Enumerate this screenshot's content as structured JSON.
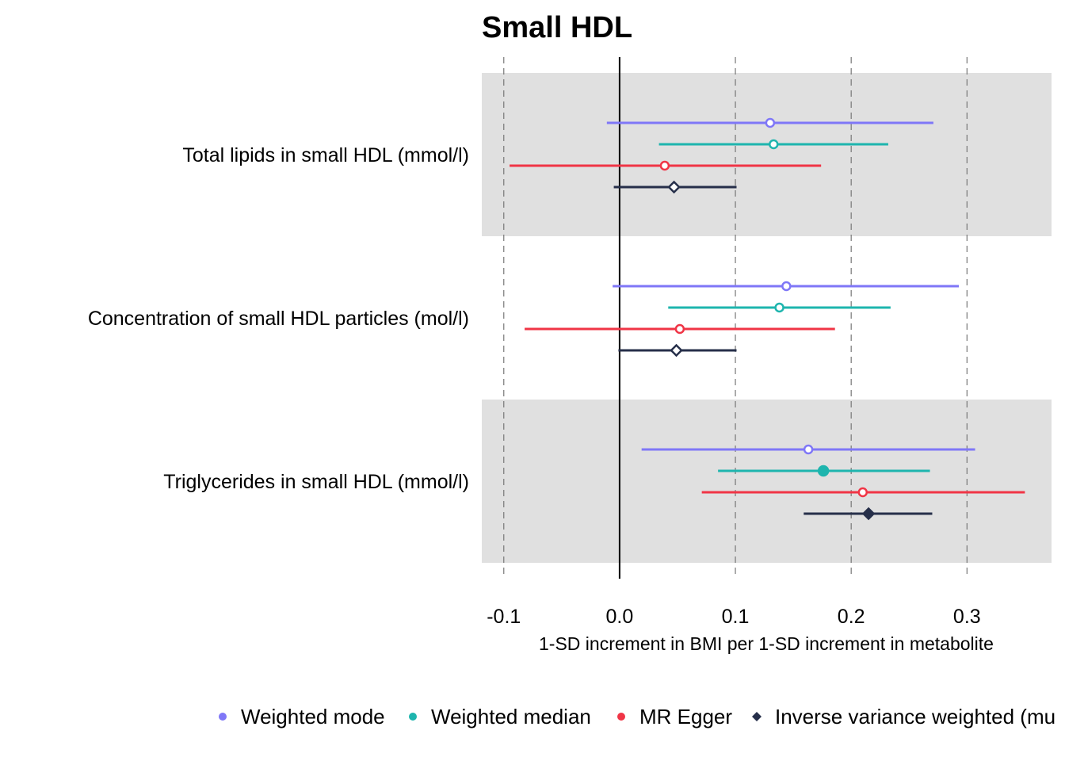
{
  "chart_data": {
    "type": "forest",
    "title": "Small HDL",
    "xlabel": "1-SD increment in BMI per 1-SD increment in metabolite",
    "ylabel": "",
    "xlim": [
      -0.119,
      0.373
    ],
    "x_ticks": [
      -0.1,
      0.0,
      0.1,
      0.2,
      0.3
    ],
    "x_tick_labels": [
      "-0.1",
      "0.0",
      "0.1",
      "0.2",
      "0.3"
    ],
    "reference_line": 0,
    "grid": "vertical dashed",
    "legend_position": "bottom",
    "categories": [
      "Total lipids in small HDL (mmol/l)",
      "Concentration of small HDL particles (mol/l)",
      "Triglycerides in small HDL (mmol/l)"
    ],
    "shaded_rows": [
      true,
      false,
      true
    ],
    "series": [
      {
        "name": "Weighted mode",
        "color": "#7F77F7",
        "marker": "circle",
        "estimate": [
          0.13,
          0.144,
          0.163
        ],
        "lower": [
          -0.011,
          -0.006,
          0.019
        ],
        "upper": [
          0.271,
          0.293,
          0.307
        ],
        "filled": [
          false,
          false,
          false
        ]
      },
      {
        "name": "Weighted median",
        "color": "#1EB5AE",
        "marker": "circle",
        "estimate": [
          0.133,
          0.138,
          0.176
        ],
        "lower": [
          0.034,
          0.042,
          0.085
        ],
        "upper": [
          0.232,
          0.234,
          0.268
        ],
        "filled": [
          false,
          false,
          true
        ]
      },
      {
        "name": "MR Egger",
        "color": "#F03546",
        "marker": "circle",
        "estimate": [
          0.039,
          0.052,
          0.21
        ],
        "lower": [
          -0.095,
          -0.082,
          0.071
        ],
        "upper": [
          0.174,
          0.186,
          0.35
        ],
        "filled": [
          false,
          false,
          false
        ]
      },
      {
        "name": "Inverse variance weighted (mu",
        "color": "#262F4A",
        "marker": "diamond",
        "estimate": [
          0.047,
          0.049,
          0.215
        ],
        "lower": [
          -0.005,
          -0.001,
          0.159
        ],
        "upper": [
          0.101,
          0.101,
          0.27
        ],
        "filled": [
          false,
          false,
          true
        ]
      }
    ]
  }
}
